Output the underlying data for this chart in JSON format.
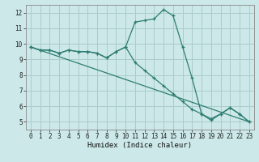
{
  "title": "",
  "xlabel": "Humidex (Indice chaleur)",
  "ylabel": "",
  "background_color": "#cce8e8",
  "grid_color": "#aacccc",
  "line_color": "#2e7d72",
  "xlim": [
    -0.5,
    23.5
  ],
  "ylim": [
    4.5,
    12.5
  ],
  "xticks": [
    0,
    1,
    2,
    3,
    4,
    5,
    6,
    7,
    8,
    9,
    10,
    11,
    12,
    13,
    14,
    15,
    16,
    17,
    18,
    19,
    20,
    21,
    22,
    23
  ],
  "yticks": [
    5,
    6,
    7,
    8,
    9,
    10,
    11,
    12
  ],
  "series1_x": [
    0,
    1,
    2,
    3,
    4,
    5,
    6,
    7,
    8,
    9,
    10,
    11,
    12,
    13,
    14,
    15,
    16,
    17,
    18,
    19,
    20,
    21,
    22,
    23
  ],
  "series1_y": [
    9.8,
    9.6,
    9.6,
    9.4,
    9.6,
    9.5,
    9.5,
    9.4,
    9.1,
    9.5,
    9.8,
    11.4,
    11.5,
    11.6,
    12.2,
    11.8,
    9.8,
    7.8,
    5.5,
    5.1,
    5.5,
    5.9,
    5.5,
    5.0
  ],
  "series2_x": [
    0,
    1,
    2,
    3,
    4,
    5,
    6,
    7,
    8,
    9,
    10,
    11,
    12,
    13,
    14,
    15,
    16,
    17,
    18,
    19,
    20,
    21,
    22,
    23
  ],
  "series2_y": [
    9.8,
    9.6,
    9.6,
    9.4,
    9.6,
    9.5,
    9.5,
    9.4,
    9.1,
    9.5,
    9.8,
    8.8,
    8.3,
    7.8,
    7.3,
    6.8,
    6.3,
    5.8,
    5.5,
    5.2,
    5.5,
    5.9,
    5.5,
    5.0
  ],
  "series3_x": [
    0,
    23
  ],
  "series3_y": [
    9.8,
    5.0
  ],
  "tick_fontsize": 5.5,
  "xlabel_fontsize": 6.5
}
